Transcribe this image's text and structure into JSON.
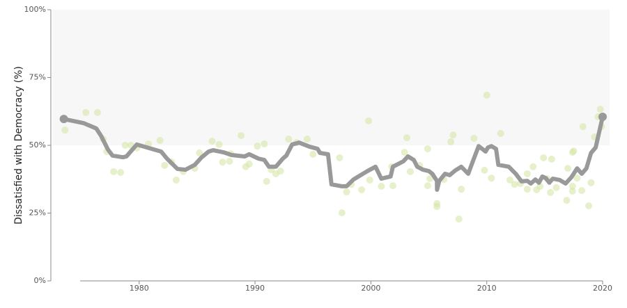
{
  "chart_data": [
    {
      "type": "scatter",
      "ylabel": "Dissatisfied with Democracy (%)",
      "color": "#d5e6a8",
      "xlim": [
        1972.5,
        2020.6
      ],
      "xticks": [
        1980,
        1990,
        2000,
        2010,
        2020
      ],
      "ylim": [
        0,
        100
      ],
      "yticks": [
        {
          "value": 0,
          "label": "0%"
        },
        {
          "value": 25,
          "label": "25%"
        },
        {
          "value": 50,
          "label": "50%"
        },
        {
          "value": 75,
          "label": "75%"
        },
        {
          "value": 100,
          "label": "100%"
        }
      ],
      "shade": [
        50,
        100
      ],
      "x": [
        1973.6,
        1975.4,
        1976.4,
        1976.9,
        1977.2,
        1977.8,
        1978.4,
        1978.8,
        1979.3,
        1979.8,
        1980.8,
        1981.8,
        1982.2,
        1982.8,
        1983.2,
        1983.8,
        1984.8,
        1985.2,
        1986.3,
        1986.9,
        1987.2,
        1987.8,
        1987.9,
        1988.8,
        1989.2,
        1989.5,
        1990.2,
        1990.8,
        1991.0,
        1991.4,
        1991.8,
        1992.2,
        1992.9,
        1993.6,
        1994.5,
        1995.0,
        1997.3,
        1997.5,
        1997.9,
        1998.3,
        1999.2,
        1999.8,
        1999.9,
        2000.9,
        2001.8,
        2001.9,
        2002.9,
        2003.1,
        2003.4,
        2004.2,
        2004.9,
        2004.9,
        2005.1,
        2005.7,
        2005.7,
        2006.3,
        2006.9,
        2007.1,
        2007.6,
        2007.8,
        2008.9,
        2009.8,
        2010.0,
        2010.4,
        2011.2,
        2012.0,
        2012.4,
        2012.9,
        2013.5,
        2013.5,
        2014.0,
        2014.3,
        2014.6,
        2014.9,
        2015.2,
        2015.5,
        2015.6,
        2016.0,
        2016.9,
        2017.0,
        2017.4,
        2017.5,
        2017.4,
        2017.4,
        2017.8,
        2018.2,
        2018.3,
        2018.8,
        2019.0,
        2019.3,
        2019.6,
        2019.8,
        2019.9
      ],
      "values": [
        55.6,
        62.1,
        62.1,
        52.3,
        47.7,
        40.3,
        40.0,
        50.0,
        50.0,
        49.0,
        50.5,
        51.8,
        42.6,
        43.8,
        37.2,
        40.3,
        41.5,
        47.2,
        51.5,
        50.3,
        43.8,
        44.1,
        46.9,
        53.6,
        42.1,
        43.1,
        49.7,
        50.5,
        36.7,
        41.0,
        39.5,
        40.5,
        52.3,
        51.0,
        52.3,
        46.7,
        45.4,
        25.1,
        32.8,
        35.6,
        33.6,
        59.0,
        37.2,
        34.9,
        42.1,
        35.1,
        47.4,
        52.8,
        40.3,
        42.6,
        48.7,
        35.1,
        37.7,
        28.5,
        27.4,
        37.4,
        51.3,
        53.8,
        22.8,
        33.8,
        52.6,
        40.8,
        68.5,
        37.9,
        54.4,
        37.2,
        35.6,
        35.9,
        39.5,
        33.8,
        42.1,
        33.6,
        34.9,
        45.4,
        37.7,
        32.6,
        44.9,
        34.4,
        29.7,
        41.5,
        47.4,
        47.9,
        34.9,
        33.1,
        37.9,
        33.3,
        56.9,
        27.7,
        36.2,
        53.1,
        60.5,
        63.3,
        56.9
      ]
    },
    {
      "type": "line",
      "color": "#999999",
      "x": [
        1973.5,
        1975.2,
        1976.3,
        1976.7,
        1977.3,
        1977.7,
        1978.6,
        1978.9,
        1979.8,
        1981.9,
        1982.4,
        1983.3,
        1984.0,
        1984.8,
        1985.4,
        1986.0,
        1986.4,
        1987.3,
        1988.0,
        1989.1,
        1989.5,
        1990.3,
        1990.8,
        1991.2,
        1991.8,
        1992.4,
        1992.7,
        1993.2,
        1993.8,
        1994.7,
        1995.4,
        1995.6,
        1996.3,
        1996.6,
        1997.5,
        1997.9,
        1998.5,
        1999.7,
        2000.4,
        2000.9,
        2001.7,
        2001.9,
        2002.8,
        2003.2,
        2003.7,
        2004.0,
        2004.5,
        2005.0,
        2005.3,
        2005.7,
        2005.71,
        2005.9,
        2006.4,
        2006.8,
        2007.3,
        2007.8,
        2008.4,
        2008.8,
        2009.3,
        2009.9,
        2010.1,
        2010.4,
        2010.8,
        2011.0,
        2011.9,
        2012.5,
        2013.0,
        2013.5,
        2013.8,
        2014.2,
        2014.5,
        2014.8,
        2015.1,
        2015.4,
        2015.7,
        2016.3,
        2016.8,
        2017.3,
        2017.8,
        2018.2,
        2018.6,
        2019.0,
        2019.4,
        2020.0
      ],
      "values": [
        59.7,
        58.2,
        56.2,
        53.6,
        48.5,
        46.2,
        45.6,
        45.9,
        50.3,
        47.7,
        45.1,
        41.3,
        41.0,
        42.8,
        45.6,
        47.7,
        48.2,
        47.4,
        46.4,
        45.9,
        46.7,
        45.1,
        44.6,
        42.1,
        42.1,
        45.1,
        46.2,
        50.3,
        51.0,
        49.5,
        48.7,
        47.2,
        46.7,
        35.6,
        34.9,
        34.9,
        37.4,
        40.5,
        42.1,
        37.7,
        38.5,
        42.1,
        44.1,
        45.9,
        44.6,
        42.1,
        41.0,
        40.5,
        39.5,
        36.9,
        33.6,
        36.9,
        39.5,
        39.0,
        40.8,
        42.1,
        39.5,
        44.1,
        49.7,
        47.7,
        49.2,
        49.7,
        48.7,
        42.8,
        42.1,
        39.5,
        36.7,
        36.9,
        35.9,
        37.4,
        36.2,
        38.5,
        37.9,
        36.2,
        37.7,
        37.2,
        35.9,
        38.2,
        41.5,
        39.5,
        41.5,
        47.2,
        49.2,
        60.5
      ]
    }
  ]
}
